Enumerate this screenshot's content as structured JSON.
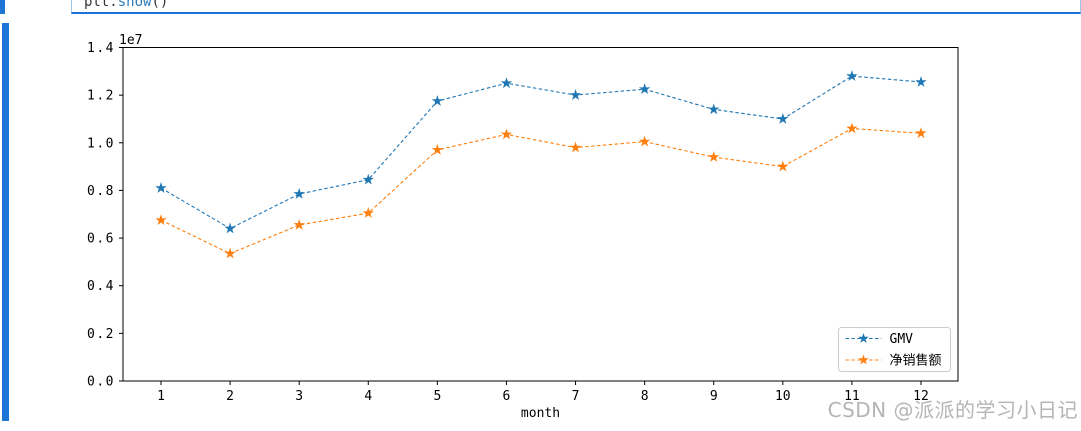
{
  "code_cell": {
    "prefix": "plt.",
    "method": "show",
    "suffix": "()"
  },
  "watermark": {
    "text": "CSDN @派派的学习小日记"
  },
  "page": {
    "accent_blue": "#1b74d6"
  },
  "chart_data": {
    "type": "line",
    "title": "",
    "xlabel": "month",
    "ylabel": "",
    "offset_text": "1e7",
    "grid": false,
    "legend_position": "lower right",
    "x": [
      1,
      2,
      3,
      4,
      5,
      6,
      7,
      8,
      9,
      10,
      11,
      12
    ],
    "x_tick_labels": [
      "1",
      "2",
      "3",
      "4",
      "5",
      "6",
      "7",
      "8",
      "9",
      "10",
      "11",
      "12"
    ],
    "y_tick_labels": [
      "0.0",
      "0.2",
      "0.4",
      "0.6",
      "0.8",
      "1.0",
      "1.2",
      "1.4"
    ],
    "ylim": [
      0,
      14000000
    ],
    "series": [
      {
        "name": "GMV",
        "color": "#1f77b4",
        "marker": "star",
        "linestyle": "dashed",
        "values": [
          8100000,
          6400000,
          7850000,
          8450000,
          11750000,
          12500000,
          12000000,
          12250000,
          11400000,
          11000000,
          12800000,
          12550000
        ]
      },
      {
        "name": "净销售额",
        "color": "#ff7f0e",
        "marker": "star",
        "linestyle": "dashed",
        "values": [
          6750000,
          5350000,
          6550000,
          7050000,
          9700000,
          10350000,
          9800000,
          10050000,
          9400000,
          9000000,
          10600000,
          10400000
        ]
      }
    ]
  }
}
